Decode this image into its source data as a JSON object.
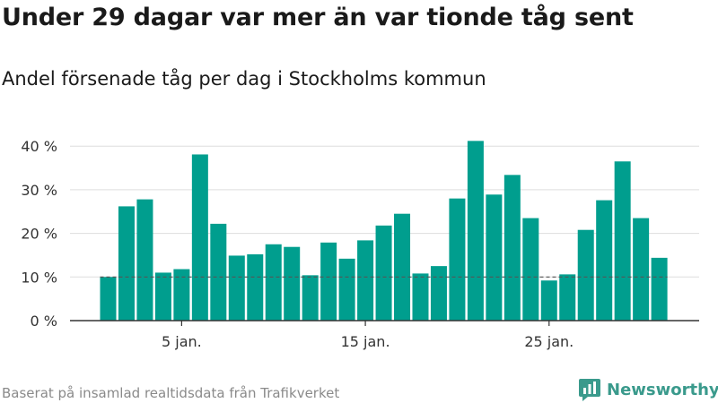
{
  "title": "Under 29 dagar var mer än var tionde tåg sent",
  "subtitle": "Andel försenade tåg per dag i Stockholms kommun",
  "footer": "Baserat på insamlad realtidsdata från Trafikverket",
  "brand": {
    "name": "Newsworthy",
    "icon": "newsworthy-logo-icon"
  },
  "colors": {
    "bar": "#009e8e",
    "grid": "#dddddd",
    "axis": "#333333",
    "reference": "#555555",
    "brand": "#3a9a8c"
  },
  "chart_data": {
    "type": "bar",
    "x": [
      1,
      2,
      3,
      4,
      5,
      6,
      7,
      8,
      9,
      10,
      11,
      12,
      13,
      14,
      15,
      16,
      17,
      18,
      19,
      20,
      21,
      22,
      23,
      24,
      25,
      26,
      27,
      28,
      29,
      30,
      31
    ],
    "values": [
      10.0,
      26.2,
      27.8,
      11.0,
      11.8,
      38.1,
      22.2,
      14.9,
      15.2,
      17.5,
      16.9,
      10.4,
      17.9,
      14.2,
      18.4,
      21.8,
      24.5,
      10.8,
      12.5,
      28.0,
      41.2,
      28.9,
      33.4,
      23.5,
      9.2,
      10.6,
      20.8,
      27.6,
      36.5,
      23.5,
      14.4
    ],
    "xticks": [
      {
        "x": 5,
        "label": "5 jan."
      },
      {
        "x": 15,
        "label": "15 jan."
      },
      {
        "x": 25,
        "label": "25 jan."
      }
    ],
    "yticks": [
      {
        "y": 0,
        "label": "0 %"
      },
      {
        "y": 10,
        "label": "10 %"
      },
      {
        "y": 20,
        "label": "20 %"
      },
      {
        "y": 30,
        "label": "30 %"
      },
      {
        "y": 40,
        "label": "40 %"
      }
    ],
    "ylim": [
      0,
      42
    ],
    "reference_line": 10,
    "grid": true,
    "xlabel": "",
    "ylabel": ""
  }
}
